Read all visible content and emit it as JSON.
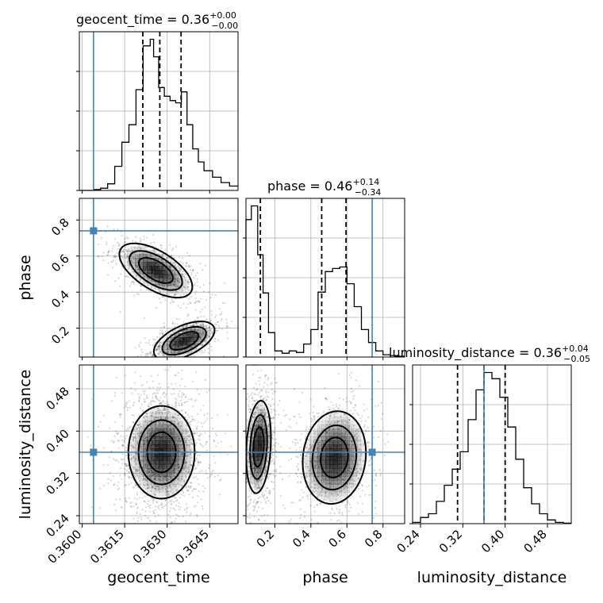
{
  "chart_data": {
    "type": "corner",
    "parameters": [
      "geocent_time",
      "phase",
      "luminosity_distance"
    ],
    "truths": {
      "geocent_time": 0.3604,
      "phase": 0.74,
      "luminosity_distance": 0.36
    },
    "diagonal_titles": {
      "geocent_time": {
        "prefix": "geocent_time = 0.36",
        "sup": "+0.00",
        "sub": "−0.00"
      },
      "phase": {
        "prefix": "phase = 0.46",
        "sup": "+0.14",
        "sub": "−0.34"
      },
      "luminosity_distance": {
        "prefix": "luminosity_distance = 0.36",
        "sup": "+0.04",
        "sub": "−0.05"
      }
    },
    "axes": {
      "geocent_time": {
        "range": [
          0.3599,
          0.3655
        ],
        "ticks": [
          0.36,
          0.3615,
          0.363,
          0.3645
        ],
        "tick_labels": [
          "0.3600",
          "0.3615",
          "0.3630",
          "0.3645"
        ]
      },
      "phase": {
        "range": [
          0.04,
          0.92
        ],
        "ticks": [
          0.2,
          0.4,
          0.6,
          0.8
        ],
        "tick_labels": [
          "0.2",
          "0.4",
          "0.6",
          "0.8"
        ]
      },
      "luminosity_distance": {
        "range": [
          0.225,
          0.525
        ],
        "ticks": [
          0.24,
          0.32,
          0.4,
          0.48
        ],
        "tick_labels": [
          "0.24",
          "0.32",
          "0.40",
          "0.48"
        ]
      }
    },
    "quantiles": {
      "geocent_time": [
        0.36214,
        0.36274,
        0.36349
      ],
      "phase": [
        0.12,
        0.46,
        0.595
      ],
      "luminosity_distance": [
        0.31,
        0.36,
        0.4
      ]
    },
    "histograms": {
      "geocent_time": {
        "bins": [
          0.3599,
          0.3604,
          0.36065,
          0.3609,
          0.36115,
          0.3614,
          0.36165,
          0.3619,
          0.36215,
          0.3624,
          0.36252,
          0.3627,
          0.3629,
          0.3631,
          0.3633,
          0.3635,
          0.3637,
          0.3639,
          0.3641,
          0.3643,
          0.3646,
          0.3649,
          0.3652,
          0.3655
        ],
        "counts": [
          0,
          2,
          5,
          15,
          55,
          110,
          150,
          230,
          330,
          345,
          305,
          235,
          215,
          205,
          200,
          225,
          150,
          95,
          65,
          45,
          30,
          18,
          10
        ]
      },
      "phase": {
        "bins": [
          0.04,
          0.07,
          0.105,
          0.135,
          0.165,
          0.2,
          0.24,
          0.28,
          0.32,
          0.36,
          0.4,
          0.44,
          0.48,
          0.52,
          0.56,
          0.6,
          0.64,
          0.68,
          0.72,
          0.76,
          0.8,
          0.84,
          0.88,
          0.92
        ],
        "counts": [
          900,
          990,
          670,
          420,
          160,
          40,
          25,
          40,
          30,
          85,
          180,
          425,
          560,
          580,
          590,
          480,
          330,
          180,
          95,
          40,
          15,
          10,
          5
        ]
      },
      "luminosity_distance": {
        "bins": [
          0.225,
          0.24,
          0.255,
          0.27,
          0.285,
          0.3,
          0.315,
          0.33,
          0.345,
          0.36,
          0.375,
          0.39,
          0.405,
          0.42,
          0.435,
          0.45,
          0.465,
          0.48,
          0.495,
          0.51,
          0.525
        ],
        "counts": [
          5,
          25,
          40,
          90,
          155,
          220,
          290,
          420,
          540,
          610,
          585,
          510,
          390,
          260,
          145,
          80,
          40,
          15,
          5,
          2
        ]
      }
    },
    "density_2d": {
      "phase_vs_geocent_time": {
        "components": [
          {
            "x": 0.3626,
            "y": 0.52,
            "sx": 0.0006,
            "sy": 0.07,
            "rho": -0.6
          },
          {
            "x": 0.3636,
            "y": 0.13,
            "sx": 0.0005,
            "sy": 0.05,
            "rho": 0.55
          }
        ],
        "contour_levels": [
          0.6,
          0.3,
          0.1
        ]
      },
      "luminosity_distance_vs_geocent_time": {
        "components": [
          {
            "x": 0.3628,
            "y": 0.36,
            "sx": 0.0006,
            "sy": 0.045,
            "rho": 0
          }
        ],
        "contour_levels": [
          0.7,
          0.4,
          0.15
        ]
      },
      "luminosity_distance_vs_phase": {
        "components": [
          {
            "x": 0.11,
            "y": 0.37,
            "sx": 0.035,
            "sy": 0.045,
            "rho": 0.2
          },
          {
            "x": 0.53,
            "y": 0.35,
            "sx": 0.09,
            "sy": 0.045,
            "rho": 0.1
          }
        ],
        "contour_levels": [
          0.7,
          0.4,
          0.15
        ]
      }
    }
  }
}
